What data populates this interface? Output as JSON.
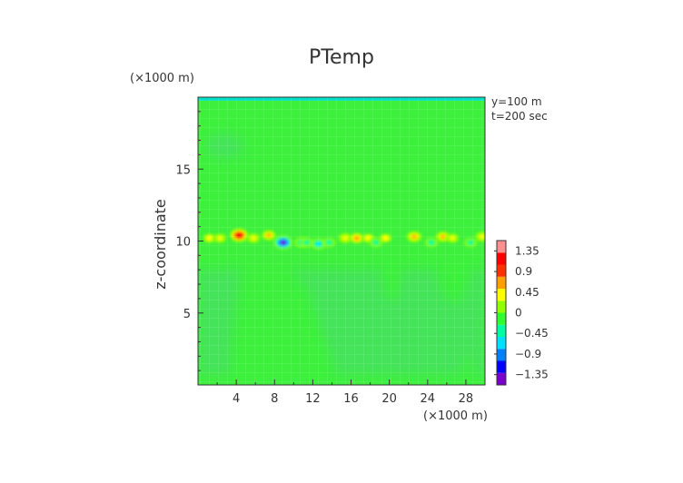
{
  "chart_data": {
    "type": "heatmap",
    "title": "PTemp",
    "ylabel": "z-coordinate",
    "x_unit_label": "(×1000 m)",
    "y_unit_label": "(×1000 m)",
    "info_lines": [
      "y=100 m",
      "t=200 sec"
    ],
    "xlim": [
      0,
      30
    ],
    "ylim": [
      0,
      20
    ],
    "x_ticks": [
      4,
      8,
      12,
      16,
      20,
      24,
      28
    ],
    "y_ticks": [
      5,
      10,
      15
    ],
    "colorbar": {
      "levels": [
        1.35,
        0.9,
        0.45,
        0,
        -0.45,
        -0.9,
        -1.35
      ],
      "range": [
        -1.575,
        1.575
      ],
      "colors": [
        "#7a00cc",
        "#0000ff",
        "#0080ff",
        "#00e0ff",
        "#00ffa0",
        "#30ff30",
        "#90ff00",
        "#ffff00",
        "#ffa000",
        "#ff3000",
        "#ff0000",
        "#ff9090"
      ]
    },
    "background_value": 0.0,
    "anomalies": [
      {
        "x": 1.2,
        "z": 10.2,
        "value": 0.3
      },
      {
        "x": 2.3,
        "z": 10.2,
        "value": 0.35
      },
      {
        "x": 4.3,
        "z": 10.4,
        "value": 1.3
      },
      {
        "x": 5.8,
        "z": 10.2,
        "value": 0.45
      },
      {
        "x": 7.4,
        "z": 10.4,
        "value": 0.6
      },
      {
        "x": 8.9,
        "z": 9.9,
        "value": -1.35
      },
      {
        "x": 10.8,
        "z": 9.9,
        "value": -0.5
      },
      {
        "x": 11.4,
        "z": 9.9,
        "value": -0.35
      },
      {
        "x": 12.6,
        "z": 9.8,
        "value": -0.75
      },
      {
        "x": 13.7,
        "z": 9.9,
        "value": -0.4
      },
      {
        "x": 15.4,
        "z": 10.2,
        "value": 0.5
      },
      {
        "x": 16.6,
        "z": 10.2,
        "value": 0.55
      },
      {
        "x": 17.8,
        "z": 10.2,
        "value": 0.3
      },
      {
        "x": 18.6,
        "z": 9.9,
        "value": -0.4
      },
      {
        "x": 19.6,
        "z": 10.2,
        "value": 0.3
      },
      {
        "x": 22.6,
        "z": 10.3,
        "value": 0.75
      },
      {
        "x": 24.4,
        "z": 9.9,
        "value": -0.4
      },
      {
        "x": 25.6,
        "z": 10.3,
        "value": 0.6
      },
      {
        "x": 26.6,
        "z": 10.2,
        "value": 0.35
      },
      {
        "x": 28.5,
        "z": 9.9,
        "value": -0.35
      },
      {
        "x": 29.7,
        "z": 10.3,
        "value": 0.5
      }
    ],
    "weak_negative_regions_value": -0.1
  }
}
